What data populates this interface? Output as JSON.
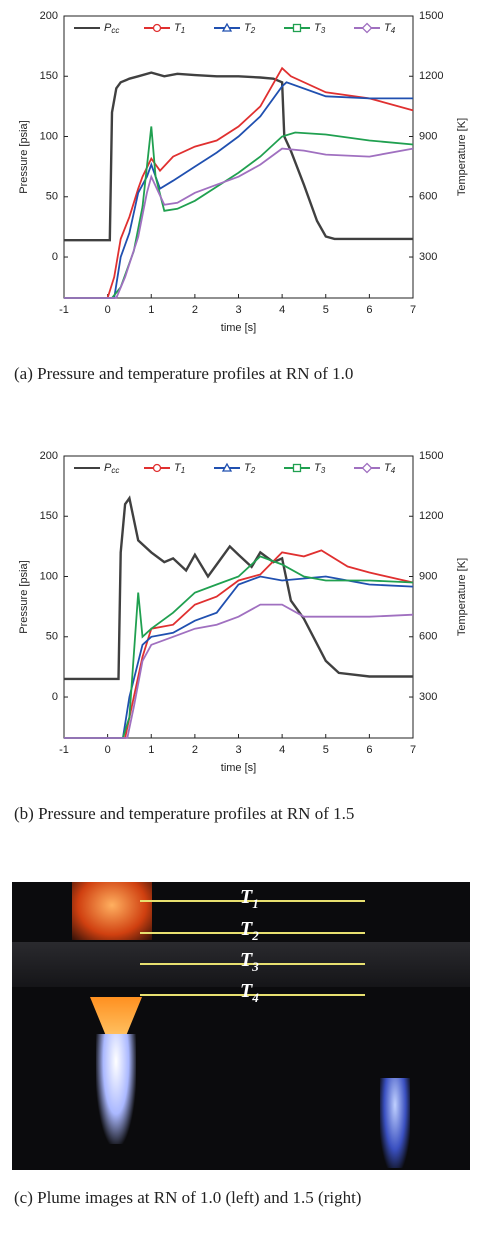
{
  "chart_data": [
    {
      "type": "line",
      "caption": "(a) Pressure and temperature profiles at RN of 1.0",
      "xlabel": "time [s]",
      "ylabel": "Pressure [psia]",
      "y2label": "Temperature [K]",
      "xlim": [
        -1,
        7
      ],
      "xticks": [
        -1,
        0,
        1,
        2,
        3,
        4,
        5,
        6,
        7
      ],
      "ylim": [
        -34,
        200
      ],
      "yticks": [
        0,
        50,
        100,
        150,
        200
      ],
      "y2lim": [
        96,
        1500
      ],
      "y2ticks": [
        300,
        600,
        900,
        1200,
        1500
      ],
      "legend": "top",
      "series": [
        {
          "name": "Pcc",
          "color": "#404040",
          "marker": "none",
          "x": [
            -1,
            0.05,
            0.1,
            0.2,
            0.3,
            0.5,
            0.7,
            1,
            1.3,
            1.6,
            2,
            2.5,
            3,
            3.5,
            3.8,
            4,
            4.05,
            4.2,
            4.5,
            4.8,
            5,
            5.2,
            6,
            7
          ],
          "values": [
            14,
            14,
            120,
            140,
            145,
            148,
            150,
            153,
            150,
            152,
            151,
            150,
            150,
            149,
            148,
            145,
            100,
            88,
            60,
            30,
            17,
            15,
            15,
            15
          ]
        },
        {
          "name": "T1",
          "color": "#e03030",
          "marker": "circle",
          "axis": "y2",
          "x": [
            -1,
            0,
            0.15,
            0.3,
            0.5,
            0.7,
            0.8,
            1,
            1.2,
            1.5,
            2,
            2.5,
            3,
            3.5,
            4,
            4.2,
            5,
            6,
            7
          ],
          "values": [
            96,
            96,
            200,
            390,
            500,
            640,
            700,
            790,
            730,
            800,
            850,
            880,
            950,
            1050,
            1240,
            1200,
            1120,
            1090,
            1030
          ]
        },
        {
          "name": "T2",
          "color": "#2050b0",
          "marker": "triangle",
          "axis": "y2",
          "x": [
            -1,
            0.15,
            0.3,
            0.5,
            0.7,
            0.9,
            1,
            1.2,
            1.5,
            2,
            2.5,
            3,
            3.5,
            4,
            4.1,
            5,
            6,
            7
          ],
          "values": [
            96,
            96,
            300,
            420,
            620,
            700,
            760,
            640,
            680,
            750,
            820,
            900,
            1000,
            1150,
            1170,
            1100,
            1090,
            1090
          ]
        },
        {
          "name": "T3",
          "color": "#20a050",
          "marker": "square",
          "axis": "y2",
          "x": [
            -1,
            0.1,
            0.3,
            0.6,
            0.8,
            1,
            1.1,
            1.3,
            1.6,
            2,
            2.5,
            3,
            3.5,
            4,
            4.3,
            5,
            6,
            7
          ],
          "values": [
            96,
            96,
            150,
            330,
            550,
            950,
            700,
            530,
            540,
            580,
            650,
            720,
            800,
            900,
            920,
            910,
            880,
            860
          ]
        },
        {
          "name": "T4",
          "color": "#a070c0",
          "marker": "diamond",
          "axis": "y2",
          "x": [
            -1,
            0.2,
            0.4,
            0.7,
            0.9,
            1,
            1.3,
            1.6,
            2,
            2.5,
            3,
            3.5,
            4,
            4.5,
            5,
            6,
            7
          ],
          "values": [
            96,
            96,
            200,
            400,
            620,
            700,
            560,
            570,
            620,
            660,
            700,
            760,
            840,
            830,
            810,
            800,
            840
          ]
        }
      ]
    },
    {
      "type": "line",
      "caption": "(b) Pressure and temperature profiles at RN of 1.5",
      "xlabel": "time [s]",
      "ylabel": "Pressure [psia]",
      "y2label": "Temperature [K]",
      "xlim": [
        -1,
        7
      ],
      "xticks": [
        -1,
        0,
        1,
        2,
        3,
        4,
        5,
        6,
        7
      ],
      "ylim": [
        -34,
        200
      ],
      "yticks": [
        0,
        50,
        100,
        150,
        200
      ],
      "y2lim": [
        96,
        1500
      ],
      "y2ticks": [
        300,
        600,
        900,
        1200,
        1500
      ],
      "legend": "top",
      "series": [
        {
          "name": "Pcc",
          "color": "#404040",
          "marker": "none",
          "x": [
            -1,
            0.25,
            0.3,
            0.4,
            0.5,
            0.7,
            1,
            1.3,
            1.5,
            1.8,
            2,
            2.3,
            2.5,
            2.8,
            3,
            3.3,
            3.5,
            3.8,
            4,
            4.2,
            4.5,
            5,
            5.3,
            6,
            7
          ],
          "values": [
            15,
            15,
            120,
            160,
            165,
            130,
            120,
            112,
            115,
            105,
            118,
            100,
            110,
            125,
            118,
            108,
            120,
            112,
            115,
            80,
            65,
            30,
            20,
            17,
            17
          ]
        },
        {
          "name": "T1",
          "color": "#e03030",
          "marker": "circle",
          "axis": "y2",
          "x": [
            -1,
            0.4,
            0.6,
            0.8,
            1,
            1.5,
            2,
            2.5,
            3,
            3.5,
            4,
            4.5,
            4.9,
            5.5,
            6,
            7
          ],
          "values": [
            96,
            96,
            300,
            500,
            640,
            660,
            760,
            800,
            880,
            910,
            1020,
            1000,
            1030,
            950,
            920,
            870
          ]
        },
        {
          "name": "T2",
          "color": "#2050b0",
          "marker": "triangle",
          "axis": "y2",
          "x": [
            -1,
            0.35,
            0.5,
            0.8,
            1,
            1.5,
            2,
            2.5,
            3,
            3.5,
            4,
            5,
            6,
            7
          ],
          "values": [
            96,
            96,
            300,
            560,
            600,
            620,
            680,
            720,
            860,
            900,
            880,
            900,
            860,
            850
          ]
        },
        {
          "name": "T3",
          "color": "#20a050",
          "marker": "square",
          "axis": "y2",
          "x": [
            -1,
            0.35,
            0.5,
            0.7,
            0.8,
            1,
            1.5,
            2,
            2.5,
            3,
            3.5,
            4,
            4.5,
            5,
            6,
            7
          ],
          "values": [
            96,
            96,
            200,
            820,
            600,
            640,
            720,
            820,
            860,
            900,
            1000,
            960,
            900,
            880,
            880,
            870
          ]
        },
        {
          "name": "T4",
          "color": "#a070c0",
          "marker": "diamond",
          "axis": "y2",
          "x": [
            -1,
            0.45,
            0.6,
            0.8,
            1,
            1.5,
            2,
            2.5,
            3,
            3.5,
            4,
            4.5,
            5,
            6,
            7
          ],
          "values": [
            96,
            96,
            250,
            480,
            560,
            600,
            640,
            660,
            700,
            760,
            760,
            700,
            700,
            700,
            710
          ]
        }
      ]
    }
  ],
  "photo": {
    "labels": [
      "T1",
      "T2",
      "T3",
      "T4"
    ],
    "caption": "(c) Plume images at RN of 1.0 (left) and 1.5 (right)"
  }
}
